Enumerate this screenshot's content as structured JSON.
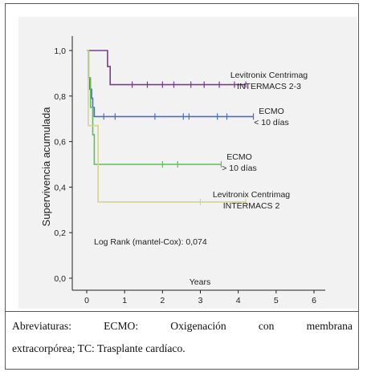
{
  "chart_data": {
    "type": "line",
    "ylabel": "Supervivencia acumulada",
    "xlabel": "Years",
    "xlim": [
      0,
      6
    ],
    "ylim": [
      0,
      1
    ],
    "x_ticks": [
      "0",
      "1",
      "2",
      "3",
      "4",
      "5",
      "6"
    ],
    "y_ticks": [
      "0,0",
      "0,2",
      "0,4",
      "0,6",
      "0,8",
      "1,0"
    ],
    "annotation": "Log Rank (mantel-Cox): 0,074",
    "series": [
      {
        "name_lines": [
          "Levitronix Centrimag",
          "INTERMACS 2-3"
        ],
        "color": "#7a3c8f",
        "points": [
          [
            0,
            1.0
          ],
          [
            0.55,
            1.0
          ],
          [
            0.55,
            0.93
          ],
          [
            0.62,
            0.93
          ],
          [
            0.62,
            0.85
          ],
          [
            4.2,
            0.85
          ]
        ],
        "censor_x": [
          1.2,
          1.6,
          2.0,
          2.3,
          2.75,
          3.1,
          3.5,
          3.9,
          4.2
        ]
      },
      {
        "name_lines": [
          "ECMO",
          "< 10 días"
        ],
        "color": "#4a6fc0",
        "points": [
          [
            0,
            1.0
          ],
          [
            0.04,
            1.0
          ],
          [
            0.04,
            0.88
          ],
          [
            0.08,
            0.88
          ],
          [
            0.08,
            0.83
          ],
          [
            0.13,
            0.83
          ],
          [
            0.13,
            0.79
          ],
          [
            0.16,
            0.79
          ],
          [
            0.16,
            0.75
          ],
          [
            0.2,
            0.75
          ],
          [
            0.2,
            0.71
          ],
          [
            4.4,
            0.71
          ]
        ],
        "censor_x": [
          0.45,
          0.75,
          1.8,
          2.55,
          2.7,
          3.45,
          3.7,
          4.4
        ]
      },
      {
        "name_lines": [
          "ECMO",
          "> 10 días"
        ],
        "color": "#5cc05c",
        "points": [
          [
            0,
            1.0
          ],
          [
            0.05,
            1.0
          ],
          [
            0.05,
            0.88
          ],
          [
            0.1,
            0.88
          ],
          [
            0.1,
            0.75
          ],
          [
            0.16,
            0.75
          ],
          [
            0.16,
            0.63
          ],
          [
            0.2,
            0.63
          ],
          [
            0.2,
            0.5
          ],
          [
            3.55,
            0.5
          ]
        ],
        "censor_x": [
          2.0,
          2.4,
          3.55
        ]
      },
      {
        "name_lines": [
          "Levitronix Centrimag",
          "INTERMACS 2"
        ],
        "color": "#d8d296",
        "points": [
          [
            0,
            1.0
          ],
          [
            0.04,
            1.0
          ],
          [
            0.04,
            0.67
          ],
          [
            0.3,
            0.67
          ],
          [
            0.3,
            0.335
          ],
          [
            4.2,
            0.335
          ]
        ],
        "censor_x": [
          3.0,
          4.2
        ]
      }
    ]
  },
  "caption": {
    "line1_words": [
      "Abreviaturas:",
      "ECMO:",
      "Oxigenación",
      "con",
      "membrana"
    ],
    "line2": "extracorpórea; TC: Trasplante cardíaco."
  }
}
